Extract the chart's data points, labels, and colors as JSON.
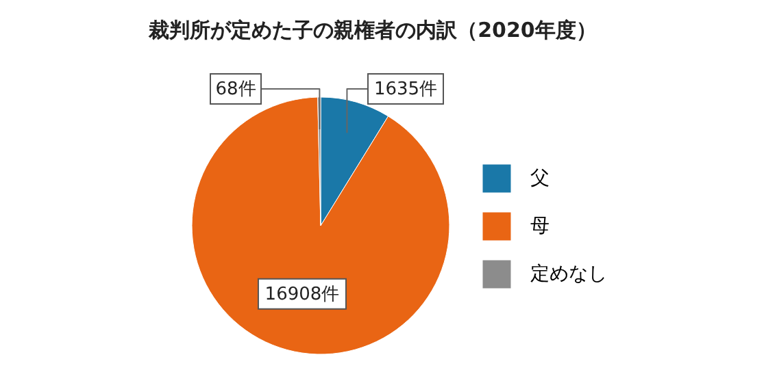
{
  "chart_data": {
    "type": "pie",
    "title": "裁判所が定めた子の親権者の内訳（2020年度）",
    "categories": [
      "父",
      "母",
      "定めなし"
    ],
    "values": [
      1635,
      16908,
      68
    ],
    "value_labels": [
      "1635件",
      "16908件",
      "68件"
    ],
    "colors": [
      "#1a78a8",
      "#e96514",
      "#8c8c8c"
    ],
    "legend": "right"
  }
}
